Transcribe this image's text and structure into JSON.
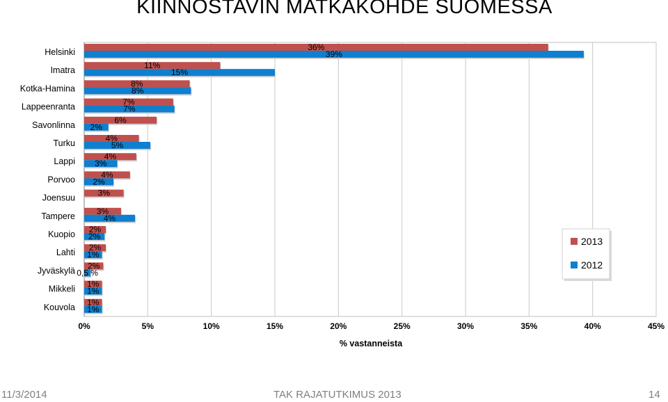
{
  "slide": {
    "title": "KIINNOSTAVIN MATKAKOHDE SUOMESSA",
    "footer_left": "11/3/2014",
    "footer_center": "TAK RAJATUTKIMUS 2013",
    "footer_right": "14"
  },
  "chart_data": {
    "type": "bar",
    "orientation": "horizontal",
    "categories": [
      "Helsinki",
      "Imatra",
      "Kotka-Hamina",
      "Lappeenranta",
      "Savonlinna",
      "Turku",
      "Lappi",
      "Porvoo",
      "Joensuu",
      "Tampere",
      "Kuopio",
      "Lahti",
      "Jyväskylä",
      "Mikkeli",
      "Kouvola"
    ],
    "series": [
      {
        "name": "2013",
        "color": "#c0504d",
        "values": [
          36.5,
          10.7,
          8.3,
          7.0,
          5.7,
          4.3,
          4.1,
          3.6,
          3.1,
          2.9,
          1.7,
          1.7,
          1.5,
          1.4,
          1.4
        ],
        "labels": [
          "36%",
          "11%",
          "8%",
          "7%",
          "6%",
          "4%",
          "4%",
          "4%",
          "3%",
          "3%",
          "2%",
          "2%",
          "2%",
          "1%",
          "1%"
        ]
      },
      {
        "name": "2012",
        "color": "#0f7fcf",
        "values": [
          39.3,
          15.0,
          8.4,
          7.1,
          1.9,
          5.2,
          2.6,
          2.3,
          null,
          4.0,
          1.6,
          1.4,
          0.5,
          1.4,
          1.4
        ],
        "labels": [
          "39%",
          "15%",
          "8%",
          "7%",
          "2%",
          "5%",
          "3%",
          "2%",
          "",
          "4%",
          "2%",
          "1%",
          "0,5 %",
          "1%",
          "1%"
        ]
      }
    ],
    "xlabel": "% vastanneista",
    "xlim": [
      0,
      45
    ],
    "xticks": [
      "0%",
      "5%",
      "10%",
      "15%",
      "20%",
      "25%",
      "30%",
      "35%",
      "40%",
      "45%"
    ],
    "grid": true,
    "legend": {
      "position": "right",
      "items": [
        "2013",
        "2012"
      ]
    }
  }
}
